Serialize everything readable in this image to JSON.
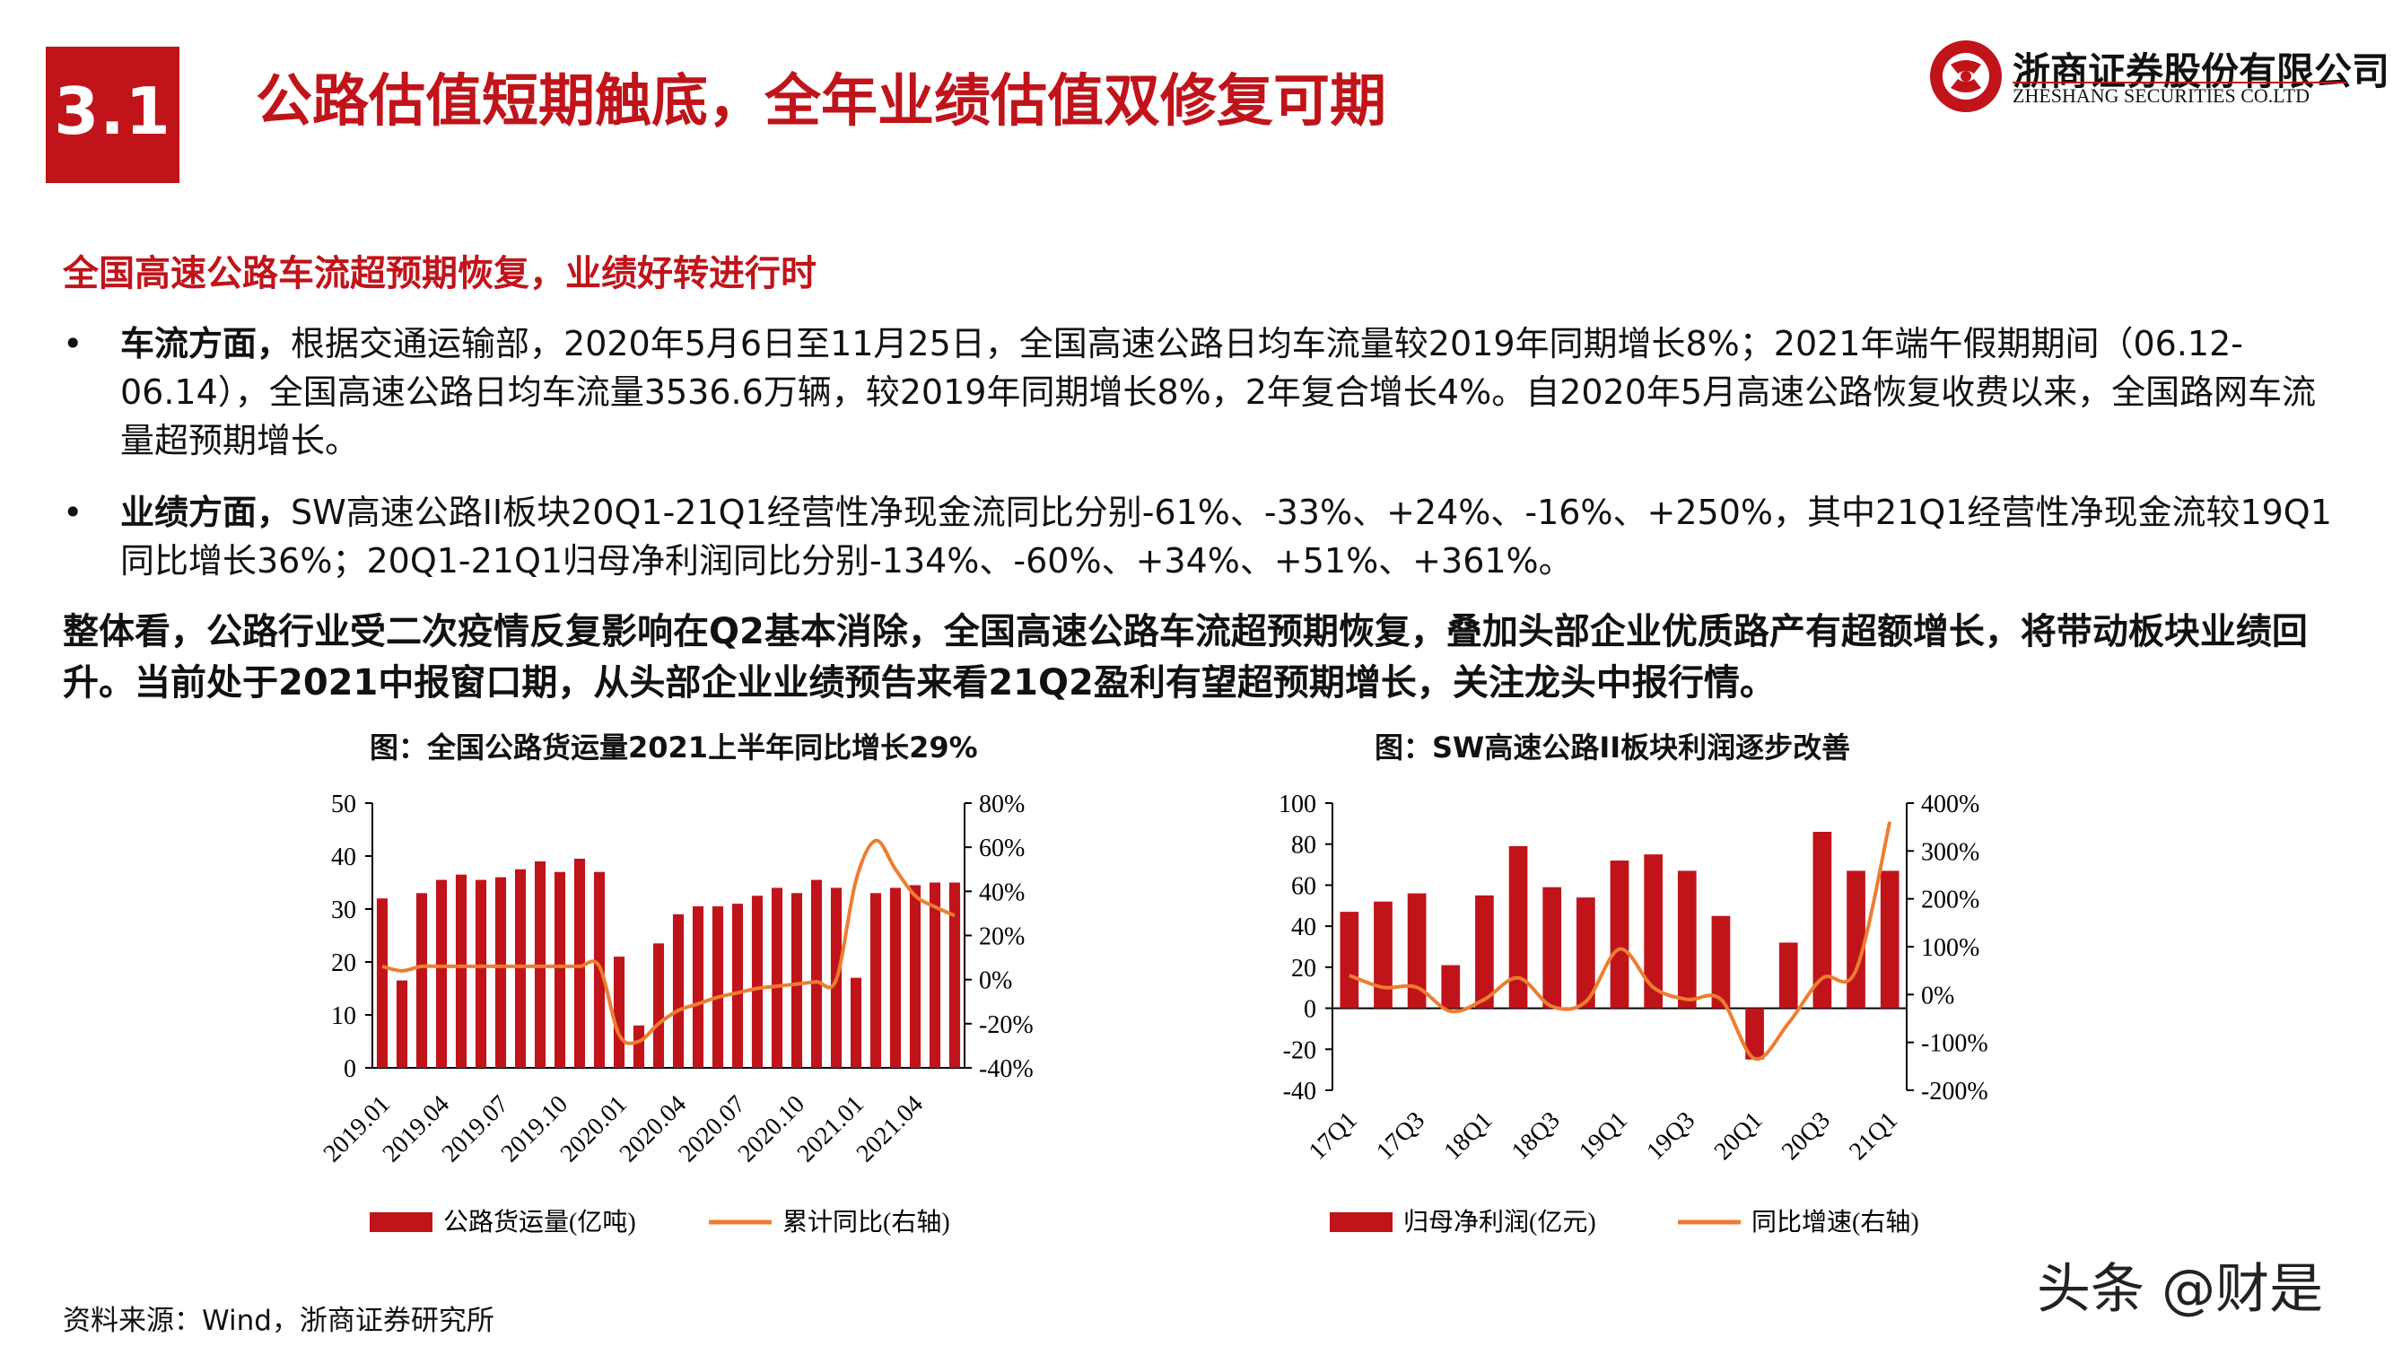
{
  "header": {
    "section_number": "3.1",
    "title": "公路估值短期触底，全年业绩估值双修复可期",
    "logo_cn": "浙商证券股份有限公司",
    "logo_en": "ZHESHANG SECURITIES CO.LTD"
  },
  "subheading": "全国高速公路车流超预期恢复，业绩好转进行时",
  "bullets": [
    {
      "marker": "•",
      "bold": "车流方面，",
      "text": "根据交通运输部，2020年5月6日至11月25日，全国高速公路日均车流量较2019年同期增长8%；2021年端午假期期间（06.12-06.14），全国高速公路日均车流量3536.6万辆，较2019年同期增长8%，2年复合增长4%。自2020年5月高速公路恢复收费以来，全国路网车流量超预期增长。"
    },
    {
      "marker": "•",
      "bold": "业绩方面，",
      "text": "SW高速公路II板块20Q1-21Q1经营性净现金流同比分别-61%、-33%、+24%、-16%、+250%，其中21Q1经营性净现金流较19Q1同比增长36%；20Q1-21Q1归母净利润同比分别-134%、-60%、+34%、+51%、+361%。"
    }
  ],
  "summary": "整体看，公路行业受二次疫情反复影响在Q2基本消除，全国高速公路车流超预期恢复，叠加头部企业优质路产有超额增长，将带动板块业绩回升。当前处于2021中报窗口期，从头部企业业绩预告来看21Q2盈利有望超预期增长，关注龙头中报行情。",
  "source": "资料来源：Wind，浙商证券研究所",
  "watermark": "头条 @财是",
  "colors": {
    "brand": "#c0141a",
    "bar": "#c0141a",
    "line": "#ed7d31"
  },
  "chart_data": [
    {
      "type": "bar+line",
      "title": "图：全国公路货运量2021上半年同比增长29%",
      "x": [
        "2019.01",
        "2019.02",
        "2019.03",
        "2019.04",
        "2019.05",
        "2019.06",
        "2019.07",
        "2019.08",
        "2019.09",
        "2019.10",
        "2019.11",
        "2019.12",
        "2020.01",
        "2020.02",
        "2020.03",
        "2020.04",
        "2020.05",
        "2020.06",
        "2020.07",
        "2020.08",
        "2020.09",
        "2020.10",
        "2020.11",
        "2020.12",
        "2021.01",
        "2021.02",
        "2021.03",
        "2021.04",
        "2021.05",
        "2021.06"
      ],
      "x_tick_labels": [
        "2019.01",
        "2019.04",
        "2019.07",
        "2019.10",
        "2020.01",
        "2020.04",
        "2020.07",
        "2020.10",
        "2021.01",
        "2021.04"
      ],
      "series": [
        {
          "name": "公路货运量(亿吨)",
          "axis": "left",
          "kind": "bar",
          "values": [
            32,
            16.5,
            33,
            35.5,
            36.5,
            35.5,
            36,
            37.5,
            39,
            37,
            39.5,
            37,
            21,
            8,
            23.5,
            29,
            30.5,
            30.5,
            31,
            32.5,
            34,
            33,
            35.5,
            34,
            17,
            33,
            34,
            34.5,
            35,
            35
          ]
        },
        {
          "name": "累计同比(右轴)",
          "axis": "right",
          "kind": "line",
          "values": [
            6,
            4,
            6,
            6,
            6,
            6,
            6,
            6,
            6,
            6,
            6,
            6,
            -25,
            -28,
            -20,
            -14,
            -11,
            -8,
            -6,
            -4,
            -3,
            -2,
            -1,
            0,
            45,
            63,
            50,
            38,
            33,
            29
          ]
        }
      ],
      "y_left": {
        "min": 0,
        "max": 50,
        "ticks": [
          "0",
          "10",
          "20",
          "30",
          "40",
          "50"
        ]
      },
      "y_right": {
        "min": -40,
        "max": 80,
        "ticks": [
          "-40%",
          "-20%",
          "0%",
          "20%",
          "40%",
          "60%",
          "80%"
        ]
      }
    },
    {
      "type": "bar+line",
      "title": "图：SW高速公路II板块利润逐步改善",
      "x": [
        "17Q1",
        "17Q2",
        "17Q3",
        "17Q4",
        "18Q1",
        "18Q2",
        "18Q3",
        "18Q4",
        "19Q1",
        "19Q2",
        "19Q3",
        "19Q4",
        "20Q1",
        "20Q2",
        "20Q3",
        "20Q4",
        "21Q1"
      ],
      "x_tick_labels": [
        "17Q1",
        "17Q3",
        "18Q1",
        "18Q3",
        "19Q1",
        "19Q3",
        "20Q1",
        "20Q3",
        "21Q1"
      ],
      "series": [
        {
          "name": "归母净利润(亿元)",
          "axis": "left",
          "kind": "bar",
          "values": [
            47,
            52,
            56,
            21,
            55,
            79,
            59,
            54,
            72,
            75,
            67,
            45,
            -25,
            32,
            86,
            67,
            67
          ]
        },
        {
          "name": "同比增速(右轴)",
          "axis": "right",
          "kind": "line",
          "values": [
            40,
            15,
            15,
            -35,
            -10,
            35,
            -25,
            -15,
            95,
            15,
            -10,
            -10,
            -134,
            -60,
            34,
            51,
            361
          ]
        }
      ],
      "y_left": {
        "min": -40,
        "max": 100,
        "ticks": [
          "-40",
          "-20",
          "0",
          "20",
          "40",
          "60",
          "80",
          "100"
        ]
      },
      "y_right": {
        "min": -200,
        "max": 400,
        "ticks": [
          "-200%",
          "-100%",
          "0%",
          "100%",
          "200%",
          "300%",
          "400%"
        ]
      }
    }
  ]
}
